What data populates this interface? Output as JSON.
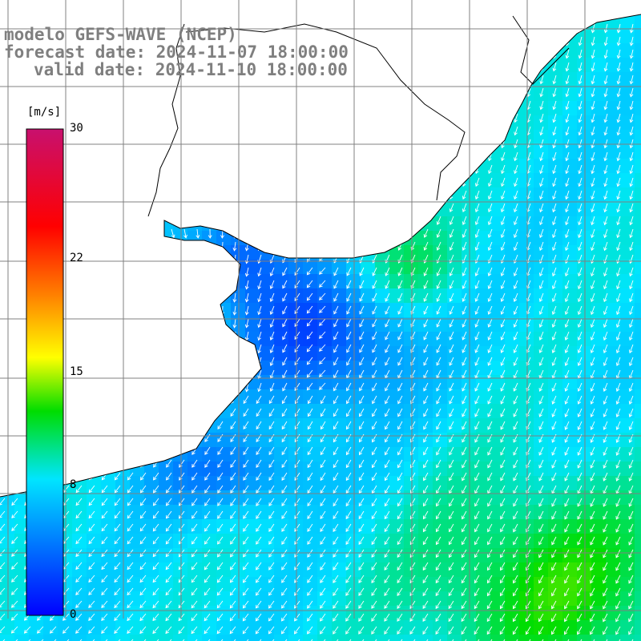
{
  "title": {
    "line1": "modelo GEFS-WAVE (NCEP)",
    "line2": "forecast date: 2024-11-07 18:00:00",
    "line3": "valid date: 2024-11-10 18:00:00"
  },
  "colorbar": {
    "unit": "[m/s]",
    "ticks": [
      {
        "value": 30,
        "label": "30"
      },
      {
        "value": 22,
        "label": "22"
      },
      {
        "value": 15,
        "label": "15"
      },
      {
        "value": 8,
        "label": "8"
      },
      {
        "value": 0,
        "label": "0"
      }
    ],
    "vmin": 0,
    "vmax": 30
  },
  "colors": {
    "land": "#ffffff",
    "coastline": "#000000",
    "grid": "#808080",
    "arrows": "#ffffff",
    "title": "#7f7f7f"
  }
}
